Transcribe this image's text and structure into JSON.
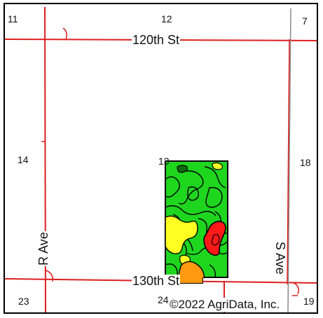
{
  "map": {
    "roads": {
      "north": "120th St",
      "south": "130th St",
      "west": "R Ave",
      "east": "S Ave"
    },
    "sections": {
      "nw": "11",
      "n": "12",
      "ne": "7",
      "w": "14",
      "center": "13",
      "e": "18",
      "sw": "23",
      "s": "24",
      "se": "19"
    },
    "copyright": "©2022 AgriData, Inc.",
    "colors": {
      "road": "#dd1f1f",
      "road_gray": "#8a8a8a",
      "soil_green": "#1fd61f",
      "soil_yellow": "#ffff22",
      "soil_orange": "#ff9a10",
      "soil_red": "#ff1a1a",
      "outline": "#000000"
    }
  }
}
